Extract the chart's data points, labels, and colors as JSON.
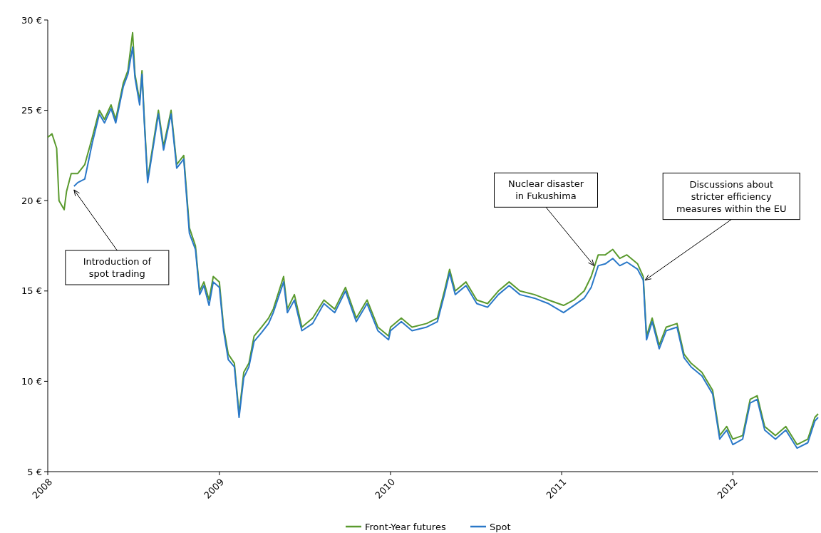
{
  "chart_data": {
    "type": "line",
    "legend": "bottom",
    "grid": false,
    "line_style": "solid",
    "xlim": [
      "2008-01-01",
      "2012-07-01"
    ],
    "xticks": [
      {
        "value": "2008-01-01",
        "label": "2008"
      },
      {
        "value": "2009-01-01",
        "label": "2009"
      },
      {
        "value": "2010-01-01",
        "label": "2010"
      },
      {
        "value": "2011-01-01",
        "label": "2011"
      },
      {
        "value": "2012-01-01",
        "label": "2012"
      }
    ],
    "ylim": [
      5,
      30
    ],
    "yticks": [
      {
        "value": 5,
        "label": "5 €"
      },
      {
        "value": 10,
        "label": "10 €"
      },
      {
        "value": 15,
        "label": "15 €"
      },
      {
        "value": 20,
        "label": "20 €"
      },
      {
        "value": 25,
        "label": "25 €"
      },
      {
        "value": 30,
        "label": "30 €"
      }
    ],
    "annotations": [
      {
        "text": "Introduction of spot trading",
        "x": "2008-02-26",
        "y": 20.6
      },
      {
        "text": "Nuclear disaster in Fukushima",
        "x": "2011-03-11",
        "y": 16.4
      },
      {
        "text": "Discussions about stricter efficiency measures within the EU",
        "x": "2011-06-28",
        "y": 15.6
      }
    ],
    "series": [
      {
        "name": "Front-Year futures",
        "color": "#5a9a2e",
        "x": [
          "2008-01-01",
          "2008-01-10",
          "2008-01-20",
          "2008-01-25",
          "2008-02-05",
          "2008-02-10",
          "2008-02-20",
          "2008-03-05",
          "2008-03-20",
          "2008-04-05",
          "2008-04-20",
          "2008-05-01",
          "2008-05-15",
          "2008-05-25",
          "2008-06-10",
          "2008-06-20",
          "2008-06-30",
          "2008-07-05",
          "2008-07-15",
          "2008-07-20",
          "2008-07-25",
          "2008-08-01",
          "2008-08-24",
          "2008-09-04",
          "2008-09-20",
          "2008-10-02",
          "2008-10-17",
          "2008-10-29",
          "2008-11-11",
          "2008-11-20",
          "2008-11-29",
          "2008-12-10",
          "2008-12-19",
          "2009-01-01",
          "2009-01-10",
          "2009-01-20",
          "2009-02-02",
          "2009-02-12",
          "2009-02-22",
          "2009-03-05",
          "2009-03-16",
          "2009-04-01",
          "2009-04-16",
          "2009-04-26",
          "2009-05-18",
          "2009-05-26",
          "2009-06-10",
          "2009-06-26",
          "2009-07-19",
          "2009-08-12",
          "2009-09-04",
          "2009-09-27",
          "2009-10-20",
          "2009-11-12",
          "2009-12-05",
          "2009-12-28",
          "2010-01-01",
          "2010-01-24",
          "2010-02-16",
          "2010-03-19",
          "2010-04-11",
          "2010-04-26",
          "2010-05-07",
          "2010-05-19",
          "2010-06-11",
          "2010-07-04",
          "2010-07-27",
          "2010-08-19",
          "2010-09-11",
          "2010-10-04",
          "2010-11-04",
          "2010-12-04",
          "2011-01-05",
          "2011-01-27",
          "2011-02-18",
          "2011-03-05",
          "2011-03-20",
          "2011-04-04",
          "2011-04-20",
          "2011-05-05",
          "2011-05-20",
          "2011-06-12",
          "2011-06-24",
          "2011-07-01",
          "2011-07-13",
          "2011-07-28",
          "2011-08-12",
          "2011-09-04",
          "2011-09-19",
          "2011-10-04",
          "2011-10-27",
          "2011-11-19",
          "2011-12-04",
          "2011-12-19",
          "2012-01-01",
          "2012-01-22",
          "2012-02-07",
          "2012-02-22",
          "2012-03-09",
          "2012-04-01",
          "2012-04-23",
          "2012-05-17",
          "2012-06-09",
          "2012-06-24",
          "2012-07-01"
        ],
        "values": [
          23.5,
          23.7,
          22.9,
          20.0,
          19.5,
          20.5,
          21.5,
          21.5,
          22.0,
          23.5,
          25.0,
          24.5,
          25.3,
          24.5,
          26.5,
          27.2,
          29.3,
          27.0,
          25.5,
          27.2,
          24.5,
          21.2,
          25.0,
          23.0,
          25.0,
          22.0,
          22.5,
          18.5,
          17.5,
          15.0,
          15.5,
          14.5,
          15.8,
          15.5,
          13.0,
          11.5,
          11.0,
          8.2,
          10.5,
          11.0,
          12.5,
          13.0,
          13.5,
          14.0,
          15.8,
          14.0,
          14.8,
          13.0,
          13.5,
          14.5,
          14.0,
          15.2,
          13.5,
          14.5,
          13.0,
          12.5,
          13.0,
          13.5,
          13.0,
          13.2,
          13.5,
          15.0,
          16.2,
          15.0,
          15.5,
          14.5,
          14.3,
          15.0,
          15.5,
          15.0,
          14.8,
          14.5,
          14.2,
          14.5,
          15.0,
          15.8,
          17.0,
          17.0,
          17.3,
          16.8,
          17.0,
          16.5,
          15.8,
          12.5,
          13.5,
          12.0,
          13.0,
          13.2,
          11.5,
          11.0,
          10.5,
          9.5,
          7.0,
          7.5,
          6.8,
          7.0,
          9.0,
          9.2,
          7.5,
          7.0,
          7.5,
          6.5,
          6.8,
          8.0,
          8.2
        ]
      },
      {
        "name": "Spot",
        "color": "#2a78c8",
        "x": [
          "2008-02-26",
          "2008-03-05",
          "2008-03-20",
          "2008-04-05",
          "2008-04-20",
          "2008-05-01",
          "2008-05-15",
          "2008-05-25",
          "2008-06-10",
          "2008-06-20",
          "2008-06-30",
          "2008-07-05",
          "2008-07-15",
          "2008-07-20",
          "2008-07-25",
          "2008-08-01",
          "2008-08-24",
          "2008-09-04",
          "2008-09-20",
          "2008-10-02",
          "2008-10-17",
          "2008-10-29",
          "2008-11-11",
          "2008-11-20",
          "2008-11-29",
          "2008-12-10",
          "2008-12-19",
          "2009-01-01",
          "2009-01-10",
          "2009-01-20",
          "2009-02-02",
          "2009-02-12",
          "2009-02-22",
          "2009-03-05",
          "2009-03-16",
          "2009-04-01",
          "2009-04-16",
          "2009-04-26",
          "2009-05-18",
          "2009-05-26",
          "2009-06-10",
          "2009-06-26",
          "2009-07-19",
          "2009-08-12",
          "2009-09-04",
          "2009-09-27",
          "2009-10-20",
          "2009-11-12",
          "2009-12-05",
          "2009-12-28",
          "2010-01-01",
          "2010-01-24",
          "2010-02-16",
          "2010-03-19",
          "2010-04-11",
          "2010-04-26",
          "2010-05-07",
          "2010-05-19",
          "2010-06-11",
          "2010-07-04",
          "2010-07-27",
          "2010-08-19",
          "2010-09-11",
          "2010-10-04",
          "2010-11-04",
          "2010-12-04",
          "2011-01-05",
          "2011-01-27",
          "2011-02-18",
          "2011-03-05",
          "2011-03-20",
          "2011-04-04",
          "2011-04-20",
          "2011-05-05",
          "2011-05-20",
          "2011-06-12",
          "2011-06-24",
          "2011-07-01",
          "2011-07-13",
          "2011-07-28",
          "2011-08-12",
          "2011-09-04",
          "2011-09-19",
          "2011-10-04",
          "2011-10-27",
          "2011-11-19",
          "2011-12-04",
          "2011-12-19",
          "2012-01-01",
          "2012-01-22",
          "2012-02-07",
          "2012-02-22",
          "2012-03-09",
          "2012-04-01",
          "2012-04-23",
          "2012-05-17",
          "2012-06-09",
          "2012-06-24",
          "2012-07-01"
        ],
        "values": [
          20.8,
          21.0,
          21.2,
          23.2,
          24.8,
          24.3,
          25.1,
          24.3,
          26.3,
          27.0,
          28.5,
          26.8,
          25.3,
          27.0,
          24.3,
          21.0,
          24.8,
          22.8,
          24.8,
          21.8,
          22.3,
          18.2,
          17.3,
          14.8,
          15.3,
          14.2,
          15.5,
          15.2,
          12.8,
          11.2,
          10.8,
          8.0,
          10.2,
          10.8,
          12.2,
          12.7,
          13.2,
          13.8,
          15.5,
          13.8,
          14.5,
          12.8,
          13.2,
          14.3,
          13.8,
          15.0,
          13.3,
          14.3,
          12.8,
          12.3,
          12.8,
          13.3,
          12.8,
          13.0,
          13.3,
          14.8,
          16.0,
          14.8,
          15.3,
          14.3,
          14.1,
          14.8,
          15.3,
          14.8,
          14.6,
          14.3,
          13.8,
          14.2,
          14.6,
          15.2,
          16.4,
          16.5,
          16.8,
          16.4,
          16.6,
          16.2,
          15.6,
          12.3,
          13.3,
          11.8,
          12.8,
          13.0,
          11.3,
          10.8,
          10.3,
          9.3,
          6.8,
          7.3,
          6.5,
          6.8,
          8.8,
          9.0,
          7.3,
          6.8,
          7.3,
          6.3,
          6.6,
          7.8,
          8.0
        ]
      }
    ]
  }
}
